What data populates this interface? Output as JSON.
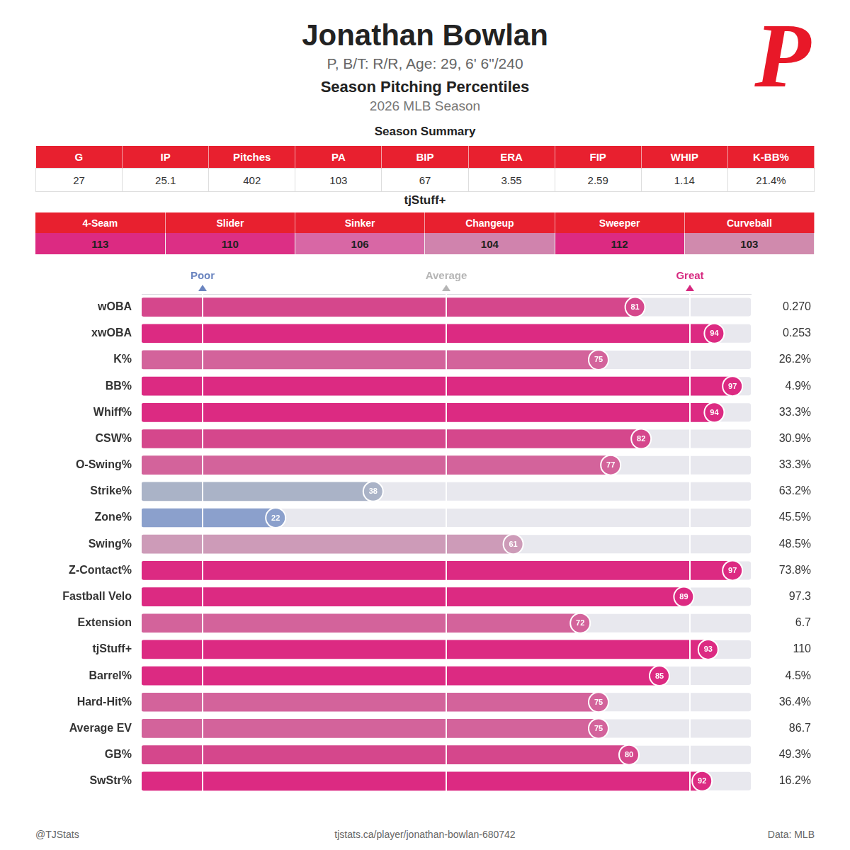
{
  "header": {
    "name": "Jonathan Bowlan",
    "bio": "P, B/T: R/R, Age: 29, 6' 6\"/240",
    "title": "Season Pitching Percentiles",
    "season": "2026 MLB Season",
    "logo": "P"
  },
  "season_summary": {
    "title": "Season Summary",
    "columns": [
      "G",
      "IP",
      "Pitches",
      "PA",
      "BIP",
      "ERA",
      "FIP",
      "WHIP",
      "K-BB%"
    ],
    "rows": [
      [
        "27",
        "25.1",
        "402",
        "103",
        "67",
        "3.55",
        "2.59",
        "1.14",
        "21.4%"
      ]
    ]
  },
  "tjstuff": {
    "title": "tjStuff+",
    "columns": [
      "4-Seam",
      "Slider",
      "Sinker",
      "Changeup",
      "Sweeper",
      "Curveball"
    ],
    "values": [
      113,
      110,
      106,
      104,
      112,
      103
    ],
    "colors": [
      "#dc2a82",
      "#dc2f85",
      "#d867a5",
      "#d083ad",
      "#dc2a82",
      "#d08aad"
    ]
  },
  "chart_data": {
    "type": "bar",
    "orientation": "horizontal",
    "categories": [
      "wOBA",
      "xwOBA",
      "K%",
      "BB%",
      "Whiff%",
      "CSW%",
      "O-Swing%",
      "Strike%",
      "Zone%",
      "Swing%",
      "Z-Contact%",
      "Fastball Velo",
      "Extension",
      "tjStuff+",
      "Barrel%",
      "Hard-Hit%",
      "Average EV",
      "GB%",
      "SwStr%"
    ],
    "values": [
      81,
      94,
      75,
      97,
      94,
      82,
      77,
      38,
      22,
      61,
      97,
      89,
      72,
      93,
      85,
      75,
      75,
      80,
      92
    ],
    "colors": [
      "#d5478c",
      "#dc2a82",
      "#d3639b",
      "#dc2a82",
      "#dc2a82",
      "#d5478c",
      "#d3639b",
      "#aab3c7",
      "#8ba0cc",
      "#cd9bb8",
      "#dc2a82",
      "#dc2a82",
      "#d3639b",
      "#dc2a82",
      "#dc2a82",
      "#d3639b",
      "#d3639b",
      "#d5478c",
      "#dc2a82"
    ],
    "stats": [
      "0.270",
      "0.253",
      "26.2%",
      "4.9%",
      "33.3%",
      "30.9%",
      "33.3%",
      "63.2%",
      "45.5%",
      "48.5%",
      "73.8%",
      "97.3",
      "6.7",
      "110",
      "4.5%",
      "36.4%",
      "86.7",
      "49.3%",
      "16.2%"
    ],
    "xlim": [
      0,
      100
    ],
    "xticks": [
      {
        "value": 10,
        "label": "Poor"
      },
      {
        "value": 50,
        "label": "Average"
      },
      {
        "value": 90,
        "label": "Great"
      }
    ],
    "grid": true,
    "data_labels": true
  },
  "footer": {
    "left": "@TJStats",
    "center": "tjstats.ca/player/jonathan-bowlan-680742",
    "right": "Data: MLB"
  }
}
